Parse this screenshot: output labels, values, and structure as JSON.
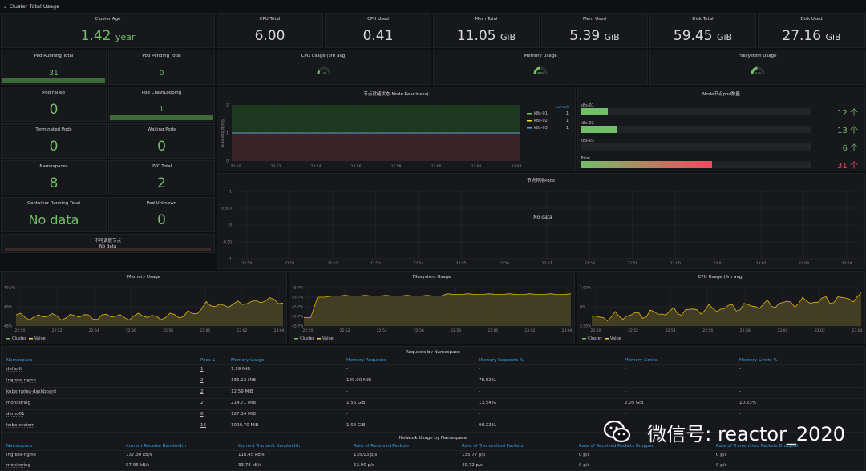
{
  "row_title": "Cluster Total Usage",
  "stats": {
    "cluster_age": {
      "title": "Cluster Age",
      "value": "1.42",
      "unit": "year"
    },
    "cpu_total": {
      "title": "CPU Total",
      "value": "6.00"
    },
    "cpu_used": {
      "title": "CPU Used",
      "value": "0.41"
    },
    "mem_total": {
      "title": "Mem Total",
      "value": "11.05",
      "unit": "GiB"
    },
    "mem_used": {
      "title": "Mem Used",
      "value": "5.39",
      "unit": "GiB"
    },
    "disk_total": {
      "title": "Disk Total",
      "value": "59.45",
      "unit": "GiB"
    },
    "disk_used": {
      "title": "Disk Used",
      "value": "27.16",
      "unit": "GiB"
    },
    "pod_running_total": {
      "title": "Pod Running Total",
      "value": "31"
    },
    "pod_pending_total": {
      "title": "Pod Pending Total",
      "value": "0"
    },
    "cpu_usage_gauge": {
      "title": "CPU Usage (5m avg)",
      "value": "6.9%"
    },
    "memory_usage_gauge": {
      "title": "Memory Usage",
      "value": "48.8%"
    },
    "filesystem_usage_gauge": {
      "title": "Filesystem Usage",
      "value": "45.7%"
    },
    "pod_failed": {
      "title": "Pod Failed",
      "value": "0"
    },
    "pod_crashlooping": {
      "title": "Pod CrashLooping",
      "value": "1"
    },
    "terminated_pods": {
      "title": "Terminated Pods",
      "value": "0"
    },
    "waiting_pods": {
      "title": "Waiting Pods",
      "value": "0"
    },
    "namespaces": {
      "title": "Namespaces",
      "value": "8"
    },
    "pvc_total": {
      "title": "PVC Total",
      "value": "2"
    },
    "container_running_total": {
      "title": "Container Running Total",
      "value": "No data"
    },
    "pod_unknown": {
      "title": "Pod Unknown",
      "value": "0"
    },
    "unschedulable_nodes": {
      "title": "不可调度节点",
      "value": "No data"
    }
  },
  "node_readiness": {
    "title": "节点就绪状态(Node Readiness)",
    "ylabel": "kubelet就绪状态",
    "yticks": [
      "2",
      "1",
      "0"
    ],
    "xticks": [
      "22:50",
      "22:52",
      "22:54",
      "22:56",
      "22:58",
      "23:00",
      "23:02",
      "23:04"
    ],
    "legend_header": "current",
    "legend": [
      {
        "name": "k8s-01",
        "value": "1",
        "color": "#73bf69"
      },
      {
        "name": "k8s-02",
        "value": "1",
        "color": "#fade2a"
      },
      {
        "name": "k8s-03",
        "value": "1",
        "color": "#5794f2"
      }
    ]
  },
  "node_pods": {
    "title": "Node节点pod数量",
    "items": [
      {
        "label": "k8s-01",
        "value": "12 个",
        "fraction": 0.12,
        "color": "#73bf69"
      },
      {
        "label": "k8s-02",
        "value": "13 个",
        "fraction": 0.16,
        "color": "#73bf69"
      },
      {
        "label": "k8s-03",
        "value": "6 个",
        "fraction": 0.0,
        "color": "#73bf69"
      },
      {
        "label": "Total",
        "value": "31 个",
        "fraction": 0.57,
        "color": "#f2495c"
      }
    ]
  },
  "abnormal_pods": {
    "title": "节点异常Pods",
    "nodata": "No data",
    "yticks": [
      "1",
      "0.500",
      "0",
      "-0.50",
      "-1"
    ],
    "xticks": [
      "22:50",
      "22:51",
      "22:52",
      "22:53",
      "22:54",
      "22:55",
      "22:56",
      "22:57",
      "22:58",
      "22:59",
      "23:00",
      "23:01",
      "23:02",
      "23:03",
      "23:04"
    ]
  },
  "memory_usage_chart": {
    "title": "Memory Usage",
    "yticks": [
      "49.5%",
      "49%",
      "48%"
    ],
    "xticks": [
      "22:50",
      "22:52",
      "22:54",
      "22:56",
      "22:58",
      "23:00",
      "23:02",
      "23:04"
    ],
    "legend": [
      "Cluster",
      "Value"
    ]
  },
  "filesystem_usage_chart": {
    "title": "Filesystem Usage",
    "yticks": [
      "45.7%",
      "45.7%",
      "45.7%",
      "45.7%",
      "45.7%"
    ],
    "xticks": [
      "22:50",
      "22:52",
      "22:54",
      "22:56",
      "22:58",
      "23:00",
      "23:02",
      "23:04"
    ],
    "legend": [
      "Cluster",
      "Value"
    ]
  },
  "cpu_usage_chart": {
    "title": "CPU Usage (5m avg)",
    "yticks": [
      "7.00%",
      "6%",
      "5.50%"
    ],
    "xticks": [
      "22:50",
      "22:52",
      "22:54",
      "22:56",
      "22:58",
      "23:00",
      "23:02",
      "23:04"
    ],
    "legend": [
      "Cluster",
      "Value"
    ]
  },
  "requests_table": {
    "title": "Requests by Namespace",
    "headers": [
      "Namespace",
      "Pods ↓",
      "Memory Usage",
      "Memory Requests",
      "Memory Requests %",
      "Memory Limits",
      "Memory Limits %"
    ],
    "rows": [
      [
        "default",
        "1",
        "1.99 MiB",
        "-",
        "-",
        "-",
        "-"
      ],
      [
        "ingress-nginx",
        "2",
        "136.12 MiB",
        "180.00 MiB",
        "75.62%",
        "-",
        "-"
      ],
      [
        "kubernetes-dashboard",
        "2",
        "12.59 MiB",
        "-",
        "-",
        "-",
        "-"
      ],
      [
        "monitoring",
        "2",
        "214.71 MiB",
        "1.55 GiB",
        "13.54%",
        "2.05 GiB",
        "10.23%"
      ],
      [
        "demo01",
        "6",
        "127.34 MiB",
        "-",
        "-",
        "-",
        "-"
      ],
      [
        "kube-system",
        "16",
        "1000.70 MiB",
        "1.02 GiB",
        "96.22%",
        "",
        ""
      ]
    ]
  },
  "network_table": {
    "title": "Network Usage by Namespace",
    "headers": [
      "Namespace",
      "Current Receive Bandwidth",
      "Current Transmit Bandwidth",
      "Rate of Received Packets",
      "Rate of Transmitted Packets",
      "Rate of Received Packets Dropped",
      "Rate of Transmitted Packets Dropped"
    ],
    "rows": [
      [
        "ingress-nginx",
        "137.30 kB/s",
        "118.45 kB/s",
        "135.03 p/s",
        "135.77 p/s",
        "0 p/s",
        "0 p/s"
      ],
      [
        "monitoring",
        "57.96 kB/s",
        "33.78 kB/s",
        "52.90 p/s",
        "49.72 p/s",
        "0 p/s",
        "0 p/s"
      ]
    ]
  },
  "watermark": "微信号: reactor_2020",
  "colors": {
    "green": "#73bf69",
    "red": "#f2495c",
    "blue": "#33a2e5",
    "yellow": "#fade2a"
  }
}
